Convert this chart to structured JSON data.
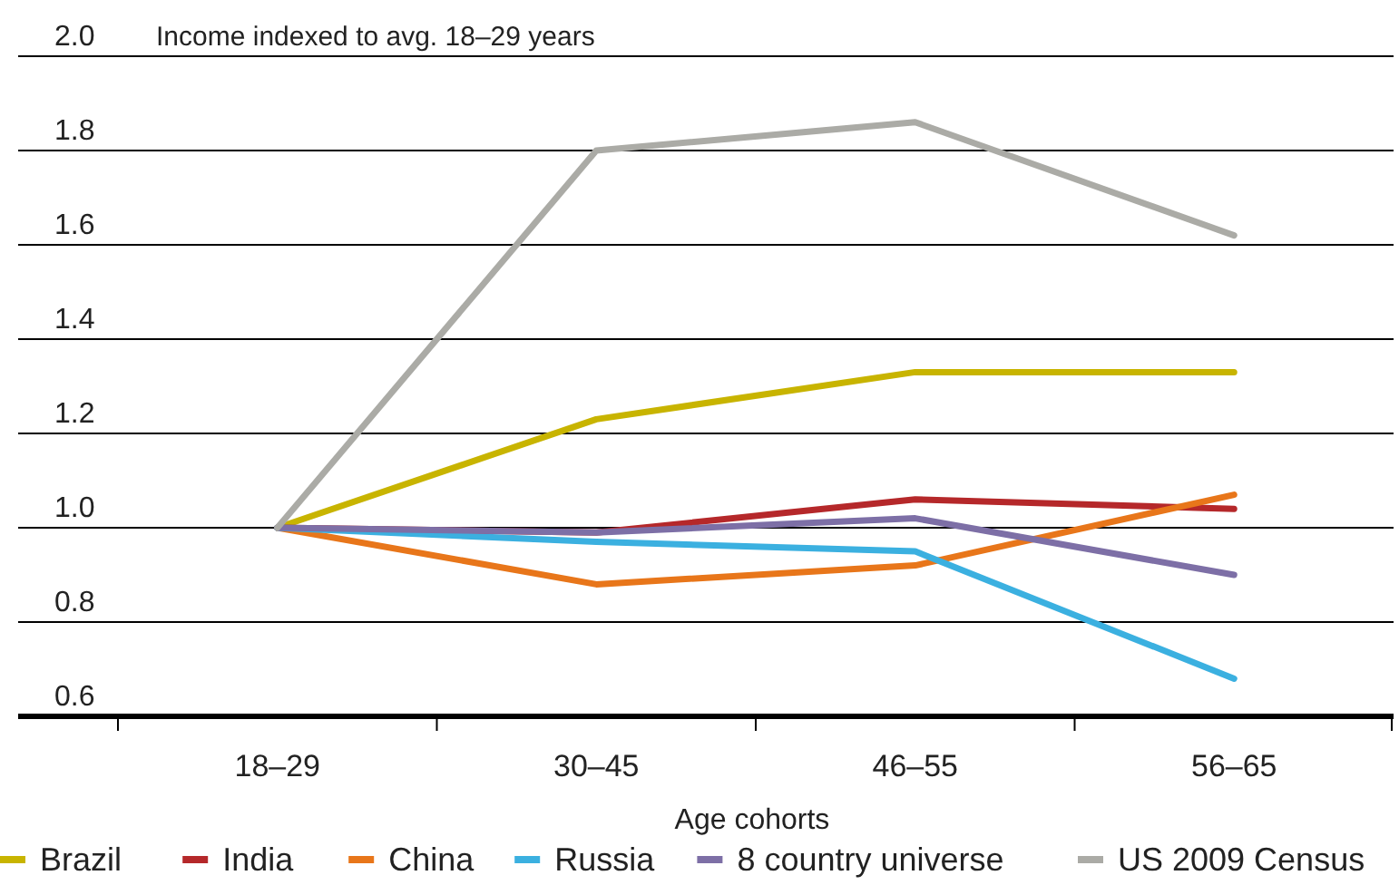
{
  "chart_data": {
    "type": "line",
    "ylabel": "Income indexed to avg. 18–29 years",
    "xlabel": "Age cohorts",
    "categories": [
      "18–29",
      "30–45",
      "46–55",
      "56–65"
    ],
    "series": [
      {
        "name": "Brazil",
        "color": "#c8b400",
        "values": [
          1.0,
          1.23,
          1.33,
          1.33
        ]
      },
      {
        "name": "India",
        "color": "#b5282a",
        "values": [
          1.0,
          0.99,
          1.06,
          1.04
        ]
      },
      {
        "name": "China",
        "color": "#e8761a",
        "values": [
          1.0,
          0.88,
          0.92,
          1.07
        ]
      },
      {
        "name": "Russia",
        "color": "#3bb0e0",
        "values": [
          1.0,
          0.97,
          0.95,
          0.68
        ]
      },
      {
        "name": "8 country universe",
        "color": "#7d6fa6",
        "values": [
          1.0,
          0.99,
          1.02,
          0.9
        ]
      },
      {
        "name": "US 2009 Census",
        "color": "#ababa6",
        "values": [
          1.0,
          1.8,
          1.86,
          1.62
        ]
      }
    ],
    "ylim": [
      0.6,
      2.0
    ],
    "yticks": [
      {
        "value": 0.6,
        "label": "0.6"
      },
      {
        "value": 0.8,
        "label": "0.8"
      },
      {
        "value": 1.0,
        "label": "1.0"
      },
      {
        "value": 1.2,
        "label": "1.2"
      },
      {
        "value": 1.4,
        "label": "1.4"
      },
      {
        "value": 1.6,
        "label": "1.6"
      },
      {
        "value": 1.8,
        "label": "1.8"
      },
      {
        "value": 2.0,
        "label": "2.0"
      }
    ],
    "grid": "y",
    "legend": "bottom",
    "marker": "none",
    "line_style": "solid"
  }
}
